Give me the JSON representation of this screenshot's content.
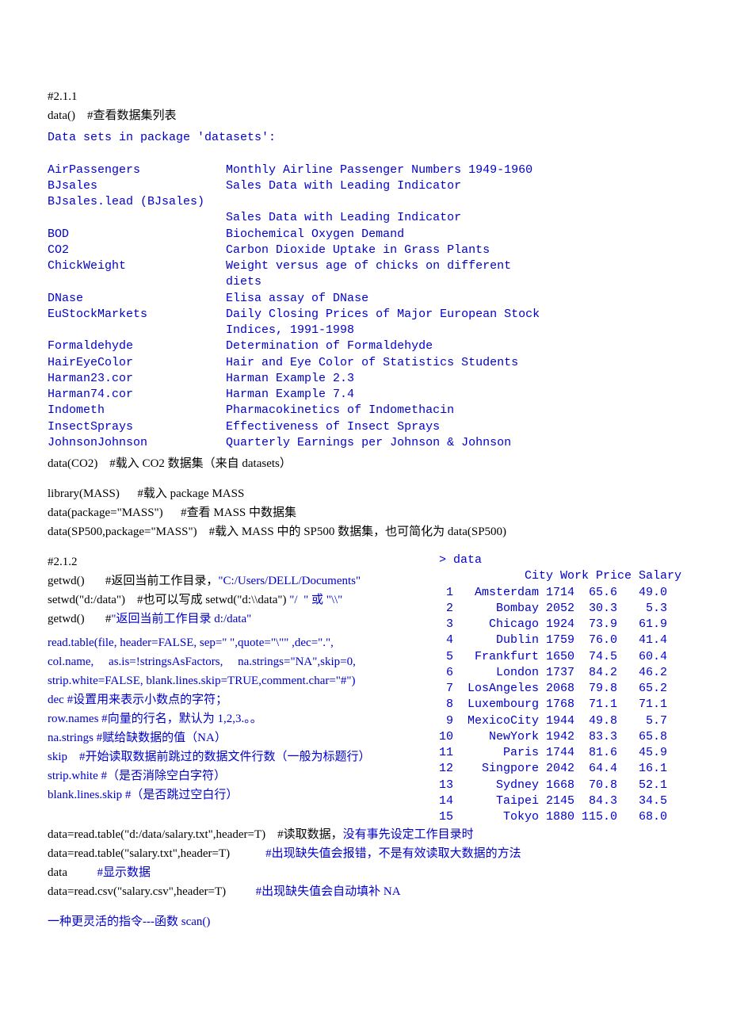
{
  "section1": {
    "heading": "#2.1.1",
    "line1_code": "data()",
    "line1_comment": "    #查看数据集列表"
  },
  "datasets_block": {
    "title": "Data sets in package 'datasets':",
    "rows": [
      [
        "AirPassengers",
        "Monthly Airline Passenger Numbers 1949-1960"
      ],
      [
        "BJsales",
        "Sales Data with Leading Indicator"
      ],
      [
        "BJsales.lead (BJsales)",
        ""
      ],
      [
        "",
        "Sales Data with Leading Indicator"
      ],
      [
        "BOD",
        "Biochemical Oxygen Demand"
      ],
      [
        "CO2",
        "Carbon Dioxide Uptake in Grass Plants"
      ],
      [
        "ChickWeight",
        "Weight versus age of chicks on different"
      ],
      [
        "",
        "diets"
      ],
      [
        "DNase",
        "Elisa assay of DNase"
      ],
      [
        "EuStockMarkets",
        "Daily Closing Prices of Major European Stock"
      ],
      [
        "",
        "Indices, 1991-1998"
      ],
      [
        "Formaldehyde",
        "Determination of Formaldehyde"
      ],
      [
        "HairEyeColor",
        "Hair and Eye Color of Statistics Students"
      ],
      [
        "Harman23.cor",
        "Harman Example 2.3"
      ],
      [
        "Harman74.cor",
        "Harman Example 7.4"
      ],
      [
        "Indometh",
        "Pharmacokinetics of Indomethacin"
      ],
      [
        "InsectSprays",
        "Effectiveness of Insect Sprays"
      ],
      [
        "JohnsonJohnson",
        "Quarterly Earnings per Johnson & Johnson"
      ]
    ]
  },
  "after_block1": {
    "l1": "data(CO2)    #载入 CO2 数据集（来自 datasets）",
    "l2": "library(MASS)      #载入 package MASS",
    "l3": "data(package=\"MASS\")      #查看 MASS 中数据集",
    "l4": "data(SP500,package=\"MASS\")    #载入 MASS 中的 SP500 数据集，也可简化为 data(SP500)"
  },
  "section2": {
    "heading": "#2.1.2",
    "l1a": "getwd()       #返回当前工作目录，",
    "l1b": "\"C:/Users/DELL/Documents\"",
    "l2a": "setwd(\"d:/data\")    #也可以写成 setwd(\"d:\\\\data\") ",
    "l2b": "\"/  \" 或 \"\\\\\"",
    "l3a": "getwd()       #",
    "l3b": "\"返回当前工作目录 d:/data\"",
    "rt1": "read.table(file, header=FALSE, sep=\" \",quote=\"\\\"\" ,dec=\".\",",
    "rt2": "col.name,     as.is=!stringsAsFactors,     na.strings=\"NA\",skip=0,",
    "rt3": "strip.white=FALSE, blank.lines.skip=TRUE,comment.char=\"#\")",
    "p1a": "dec #",
    "p1b": "设置用来表示小数点的字符；",
    "p2a": "row.names #",
    "p2b": "向量的行名，默认为 1,2,3.。。",
    "p3a": "na.strings #",
    "p3b": "赋给缺数据的值（NA）",
    "p4a": "skip    #",
    "p4b": "开始读取数据前跳过的数据文件行数（一般为标题行）",
    "p5a": "strip.white #",
    "p5b": "（是否消除空白字符）",
    "p6a": "blank.lines.skip #",
    "p6b": "（是否跳过空白行）"
  },
  "data_output": {
    "prompt": "> data",
    "header": "         City Work Price Salary",
    "rows": [
      [
        "1",
        "  Amsterdam",
        "1714",
        " 65.6",
        "  49.0"
      ],
      [
        "2",
        "     Bombay",
        "2052",
        " 30.3",
        "   5.3"
      ],
      [
        "3",
        "    Chicago",
        "1924",
        " 73.9",
        "  61.9"
      ],
      [
        "4",
        "     Dublin",
        "1759",
        " 76.0",
        "  41.4"
      ],
      [
        "5",
        "  Frankfurt",
        "1650",
        " 74.5",
        "  60.4"
      ],
      [
        "6",
        "     London",
        "1737",
        " 84.2",
        "  46.2"
      ],
      [
        "7",
        " LosAngeles",
        "2068",
        " 79.8",
        "  65.2"
      ],
      [
        "8",
        " Luxembourg",
        "1768",
        " 71.1",
        "  71.1"
      ],
      [
        "9",
        " MexicoCity",
        "1944",
        " 49.8",
        "   5.7"
      ],
      [
        "10",
        "    NewYork",
        "1942",
        " 83.3",
        "  65.8"
      ],
      [
        "11",
        "      Paris",
        "1744",
        " 81.6",
        "  45.9"
      ],
      [
        "12",
        "   Singpore",
        "2042",
        " 64.4",
        "  16.1"
      ],
      [
        "13",
        "     Sydney",
        "1668",
        " 70.8",
        "  52.1"
      ],
      [
        "14",
        "     Taipei",
        "2145",
        " 84.3",
        "  34.5"
      ],
      [
        "15",
        "      Tokyo",
        "1880",
        "115.0",
        "  68.0"
      ]
    ]
  },
  "bottom": {
    "b1a": "data=read.table(\"d:/data/salary.txt\",header=T)    #读取数据，",
    "b1b": "没有事先设定工作目录时",
    "b2a": "data=read.table(\"salary.txt\",header=T)            ",
    "b2b": "#出现缺失值会报错，不是有效读取大数据的方法",
    "b3a": "data          ",
    "b3b": "#显示数据",
    "b4a": "data=read.csv(\"salary.csv\",header=T)          ",
    "b4b": "#出现缺失值会自动填补 NA",
    "b5": "一种更灵活的指令---函数 scan()"
  }
}
